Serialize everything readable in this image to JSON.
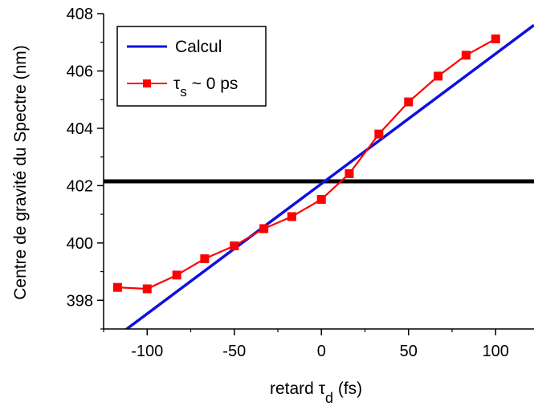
{
  "chart_data": {
    "type": "line",
    "xlabel": "retard τd (fs)",
    "xlabel_parts": {
      "prefix": "retard ",
      "symbol": "τ",
      "subscript": "d",
      "suffix": " (fs)"
    },
    "ylabel": "Centre de gravité du Spectre (nm)",
    "xlim": [
      -125,
      122
    ],
    "ylim": [
      397,
      408
    ],
    "xticks": [
      -100,
      -50,
      0,
      50,
      100
    ],
    "yticks": [
      398,
      400,
      402,
      404,
      406,
      408
    ],
    "xtick_labels": [
      "-100",
      "-50",
      "0",
      "50",
      "100"
    ],
    "ytick_labels": [
      "398",
      "400",
      "402",
      "404",
      "406",
      "408"
    ],
    "legend_position": "top-left",
    "series": [
      {
        "name": "Calcul",
        "kind": "line",
        "color": "#1010dd",
        "x": [
          -115,
          122
        ],
        "y": [
          396.85,
          407.6
        ]
      },
      {
        "name": "τs ~ 0 ps",
        "name_parts": {
          "symbol": "τ",
          "subscript": "s",
          "suffix": " ~ 0 ps"
        },
        "kind": "line-markers",
        "marker": "square",
        "color": "#ff0000",
        "x": [
          -117,
          -100,
          -83,
          -67,
          -50,
          -33,
          -17,
          0,
          16,
          33,
          50,
          67,
          83,
          100
        ],
        "y": [
          398.45,
          398.4,
          398.88,
          399.45,
          399.9,
          400.5,
          400.92,
          401.52,
          402.42,
          403.8,
          404.92,
          405.82,
          406.55,
          407.12
        ]
      }
    ],
    "reference_lines": [
      {
        "orientation": "horizontal",
        "y": 402.15,
        "color": "#000000"
      }
    ]
  }
}
